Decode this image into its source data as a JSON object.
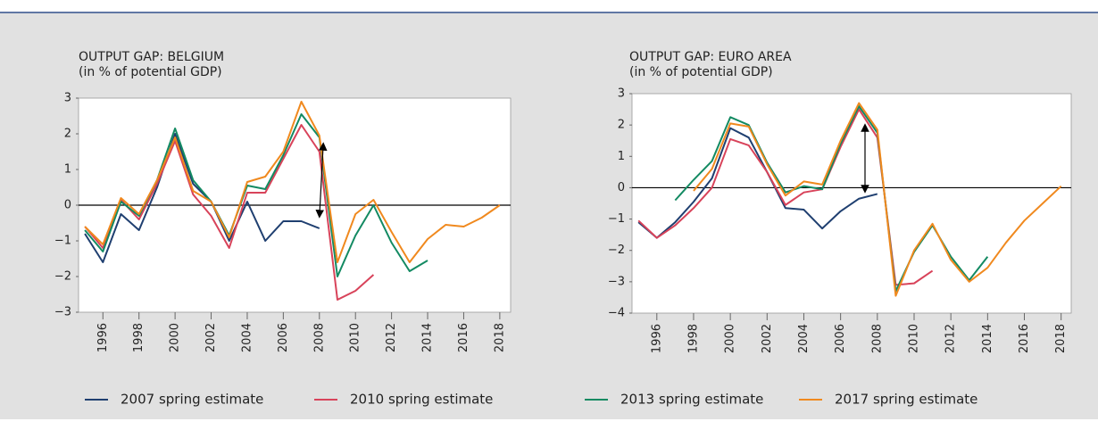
{
  "chart_data": [
    {
      "type": "line",
      "title": "OUTPUT GAP: BELGIUM",
      "subtitle": "(in % of potential GDP)",
      "x": [
        1995,
        1996,
        1997,
        1998,
        1999,
        2000,
        2001,
        2002,
        2003,
        2004,
        2005,
        2006,
        2007,
        2008,
        2009,
        2010,
        2011,
        2012,
        2013,
        2014,
        2015,
        2016,
        2017,
        2018
      ],
      "xlim": [
        1994.65,
        2018.6
      ],
      "xticks": [
        1996,
        1998,
        2000,
        2002,
        2004,
        2006,
        2008,
        2010,
        2012,
        2014,
        2016,
        2018
      ],
      "ylim": [
        -3,
        3
      ],
      "yticks": [
        {
          "value": -3,
          "label": "−3"
        },
        {
          "value": -2,
          "label": "−2"
        },
        {
          "value": -1,
          "label": "−1"
        },
        0,
        1,
        2,
        3
      ],
      "series": [
        {
          "name": "2007 spring estimate",
          "color": "#1f3f70",
          "values": [
            -0.8,
            -1.6,
            -0.25,
            -0.7,
            0.5,
            2.0,
            0.6,
            0.1,
            -1.0,
            0.1,
            -1.0,
            -0.45,
            -0.45,
            -0.65,
            null,
            null,
            null,
            null,
            null,
            null,
            null,
            null,
            null,
            null
          ]
        },
        {
          "name": "2010 spring estimate",
          "color": "#d8435a",
          "values": [
            -0.6,
            -1.2,
            0.15,
            -0.4,
            0.6,
            1.8,
            0.3,
            -0.3,
            -1.2,
            0.35,
            0.35,
            1.3,
            2.25,
            1.5,
            -2.65,
            -2.4,
            -1.95,
            null,
            null,
            null,
            null,
            null,
            null,
            null
          ]
        },
        {
          "name": "2013 spring estimate",
          "color": "#138a62",
          "values": [
            -0.7,
            -1.3,
            0.1,
            -0.3,
            0.7,
            2.15,
            0.7,
            0.1,
            -0.85,
            0.55,
            0.45,
            1.4,
            2.55,
            1.9,
            -2.0,
            -0.85,
            0.0,
            -1.05,
            -1.85,
            -1.55,
            null,
            null,
            null,
            null
          ]
        },
        {
          "name": "2017 spring estimate",
          "color": "#f0891e",
          "values": [
            -0.6,
            -1.1,
            0.2,
            -0.25,
            0.7,
            1.9,
            0.4,
            0.1,
            -0.9,
            0.65,
            0.8,
            1.5,
            2.9,
            1.95,
            -1.6,
            -0.25,
            0.15,
            -0.75,
            -1.6,
            -0.95,
            -0.55,
            -0.6,
            -0.35,
            0.0
          ]
        }
      ]
    },
    {
      "type": "line",
      "title": "OUTPUT GAP: EURO AREA",
      "subtitle": "(in % of potential GDP)",
      "x": [
        1995,
        1996,
        1997,
        1998,
        1999,
        2000,
        2001,
        2002,
        2003,
        2004,
        2005,
        2006,
        2007,
        2008,
        2009,
        2010,
        2011,
        2012,
        2013,
        2014,
        2015,
        2016,
        2017,
        2018
      ],
      "xlim": [
        1994.65,
        2018.55
      ],
      "xticks": [
        1996,
        1998,
        2000,
        2002,
        2004,
        2006,
        2008,
        2010,
        2012,
        2014,
        2016,
        2018
      ],
      "ylim": [
        -4,
        3
      ],
      "yticks": [
        {
          "value": -4,
          "label": "−4"
        },
        {
          "value": -3,
          "label": "−3"
        },
        {
          "value": -2,
          "label": "−2"
        },
        {
          "value": -1,
          "label": "−1"
        },
        0,
        1,
        2,
        3
      ],
      "series": [
        {
          "name": "2007 spring estimate",
          "color": "#1f3f70",
          "values": [
            -1.1,
            -1.6,
            -1.1,
            -0.45,
            0.3,
            1.9,
            1.6,
            0.5,
            -0.65,
            -0.7,
            -1.3,
            -0.75,
            -0.35,
            -0.2,
            null,
            null,
            null,
            null,
            null,
            null,
            null,
            null,
            null,
            null
          ]
        },
        {
          "name": "2010 spring estimate",
          "color": "#d8435a",
          "values": [
            -1.05,
            -1.6,
            -1.2,
            -0.65,
            0.0,
            1.55,
            1.35,
            0.5,
            -0.55,
            -0.15,
            -0.05,
            1.3,
            2.5,
            1.6,
            -3.1,
            -3.05,
            -2.65,
            null,
            null,
            null,
            null,
            null,
            null,
            null
          ]
        },
        {
          "name": "2013 spring estimate",
          "color": "#138a62",
          "values": [
            null,
            null,
            -0.4,
            0.25,
            0.85,
            2.25,
            2.0,
            0.8,
            -0.15,
            0.05,
            -0.05,
            1.4,
            2.6,
            1.75,
            -3.3,
            -2.05,
            -1.2,
            -2.2,
            -2.95,
            -2.2,
            null,
            null,
            null,
            null
          ]
        },
        {
          "name": "2017 spring estimate",
          "color": "#f0891e",
          "values": [
            null,
            null,
            null,
            -0.1,
            0.6,
            2.05,
            1.95,
            0.75,
            -0.25,
            0.2,
            0.1,
            1.5,
            2.7,
            1.85,
            -3.45,
            -2.0,
            -1.15,
            -2.3,
            -3.0,
            -2.55,
            -1.75,
            -1.05,
            -0.5,
            0.05
          ]
        }
      ]
    }
  ]
}
